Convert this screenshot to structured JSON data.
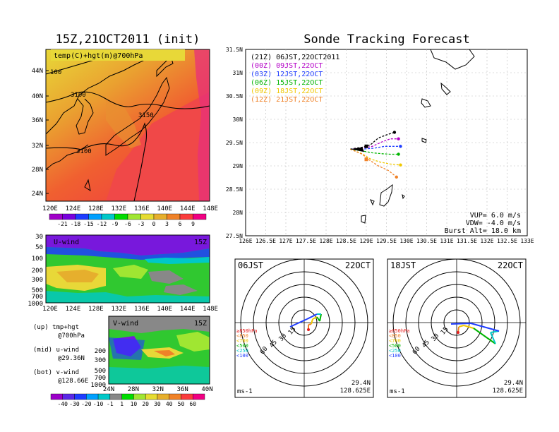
{
  "left_title": "15Z,21OCT2011 (init)",
  "right_title": "Sonde Tracking Forecast",
  "map700": {
    "label": "temp(C)+hgt(m)@700hPa",
    "lat_ticks": [
      "44N",
      "40N",
      "36N",
      "32N",
      "28N",
      "24N"
    ],
    "lon_ticks": [
      "120E",
      "124E",
      "128E",
      "132E",
      "136E",
      "140E",
      "144E",
      "148E"
    ],
    "contours": [
      "100",
      "3100",
      "3150",
      "3100"
    ],
    "colorbar": [
      "-21",
      "-18",
      "-15",
      "-12",
      "-9",
      "-6",
      "-3",
      "0",
      "3",
      "6",
      "9"
    ],
    "colorbar_colors": [
      "#a000c8",
      "#7800dc",
      "#1e3cff",
      "#00a0ff",
      "#00c8c8",
      "#00dc00",
      "#a0e632",
      "#e6dc32",
      "#e6af2d",
      "#f08228",
      "#fa3c3c",
      "#f00082"
    ]
  },
  "uwind": {
    "label": "U-wind",
    "time": "15Z",
    "p_ticks": [
      "30",
      "50",
      "100",
      "200",
      "300",
      "500",
      "700",
      "1000"
    ],
    "lon_ticks": [
      "120E",
      "124E",
      "128E",
      "132E",
      "136E",
      "140E",
      "144E",
      "148E"
    ]
  },
  "vwind": {
    "label": "V-wind",
    "time": "15Z",
    "p_ticks": [
      "200",
      "300",
      "500",
      "700",
      "1000"
    ],
    "lat_ticks": [
      "24N",
      "28N",
      "32N",
      "36N",
      "40N"
    ],
    "colorbar": [
      "-40",
      "-30",
      "-20",
      "-10",
      "-1",
      "1",
      "10",
      "20",
      "30",
      "40",
      "50",
      "60"
    ]
  },
  "notes": [
    {
      "a": "(up) tmp+hgt",
      "b": "@700hPa"
    },
    {
      "a": "(mid) u-wind",
      "b": "@29.36N"
    },
    {
      "a": "(bot) v-wind",
      "b": "@128.66E"
    }
  ],
  "chart_data": {
    "type": "line",
    "title": "Sonde Tracking Forecast",
    "xlim": [
      126,
      133
    ],
    "ylim": [
      27.5,
      31.5
    ],
    "x_ticks": [
      "126E",
      "126.5E",
      "127E",
      "127.5E",
      "128E",
      "128.5E",
      "129E",
      "129.5E",
      "130E",
      "130.5E",
      "131E",
      "131.5E",
      "132E",
      "132.5E",
      "133E"
    ],
    "y_ticks": [
      "31.5N",
      "31N",
      "30.5N",
      "30N",
      "29.5N",
      "29N",
      "28.5N",
      "28N",
      "27.5N"
    ],
    "start": [
      128.6,
      29.36
    ],
    "series": [
      {
        "name": "(21Z) 06JST,22OCT2011",
        "color": "#000000",
        "points": [
          [
            128.6,
            29.36
          ],
          [
            128.9,
            29.4
          ],
          [
            129.1,
            29.45
          ],
          [
            129.3,
            29.6
          ],
          [
            129.55,
            29.68
          ],
          [
            129.7,
            29.72
          ]
        ]
      },
      {
        "name": "(00Z) 09JST,22OCT",
        "color": "#b400c8",
        "points": [
          [
            128.6,
            29.36
          ],
          [
            128.9,
            29.38
          ],
          [
            129.15,
            29.42
          ],
          [
            129.4,
            29.52
          ],
          [
            129.6,
            29.58
          ],
          [
            129.8,
            29.58
          ]
        ]
      },
      {
        "name": "(03Z) 12JST,22OCT",
        "color": "#1e3cff",
        "points": [
          [
            128.6,
            29.36
          ],
          [
            128.9,
            29.36
          ],
          [
            129.2,
            29.38
          ],
          [
            129.45,
            29.42
          ],
          [
            129.65,
            29.42
          ],
          [
            129.85,
            29.42
          ]
        ]
      },
      {
        "name": "(06Z) 15JST,22OCT",
        "color": "#00b400",
        "points": [
          [
            128.6,
            29.36
          ],
          [
            128.9,
            29.32
          ],
          [
            129.15,
            29.28
          ],
          [
            129.4,
            29.26
          ],
          [
            129.6,
            29.25
          ],
          [
            129.8,
            29.25
          ]
        ]
      },
      {
        "name": "(09Z) 18JST,22OCT",
        "color": "#f0c800",
        "points": [
          [
            128.6,
            29.36
          ],
          [
            128.9,
            29.26
          ],
          [
            129.1,
            29.15
          ],
          [
            129.35,
            29.08
          ],
          [
            129.6,
            29.04
          ],
          [
            129.85,
            29.02
          ]
        ]
      },
      {
        "name": "(12Z) 21JST,22OCT",
        "color": "#f08228",
        "points": [
          [
            128.6,
            29.36
          ],
          [
            128.9,
            29.25
          ],
          [
            129.05,
            29.14
          ],
          [
            129.3,
            29.0
          ],
          [
            129.55,
            28.9
          ],
          [
            129.75,
            28.76
          ]
        ]
      }
    ],
    "launch_squares": [
      [
        129.0,
        29.42
      ],
      [
        129.0,
        29.14
      ]
    ],
    "info": [
      "VUP= 6.0 m/s",
      "VDW= -4.0 m/s",
      "Burst Alt= 18.0 km"
    ],
    "hodographs": [
      {
        "time": "06JST",
        "date": "22OCT",
        "lat": "29.4N",
        "lon": "128.625E",
        "units": "ms-1",
        "rings": [
          "15",
          "30",
          "45",
          "60"
        ],
        "levels": [
          "≥850hPa",
          "<850",
          "<700",
          "<500",
          "<250",
          "<100"
        ],
        "level_colors": [
          "#e61e1e",
          "#f08228",
          "#f0c800",
          "#00b400",
          "#00c8c8",
          "#1e3cff"
        ]
      },
      {
        "time": "18JST",
        "date": "22OCT",
        "lat": "29.4N",
        "lon": "128.625E",
        "units": "ms-1",
        "rings": [
          "15",
          "30",
          "45",
          "60"
        ],
        "levels": [
          "≥850hPa",
          "<850",
          "<700",
          "<500",
          "<250",
          "<100"
        ],
        "level_colors": [
          "#e61e1e",
          "#f08228",
          "#f0c800",
          "#00b400",
          "#00c8c8",
          "#1e3cff"
        ]
      }
    ]
  }
}
